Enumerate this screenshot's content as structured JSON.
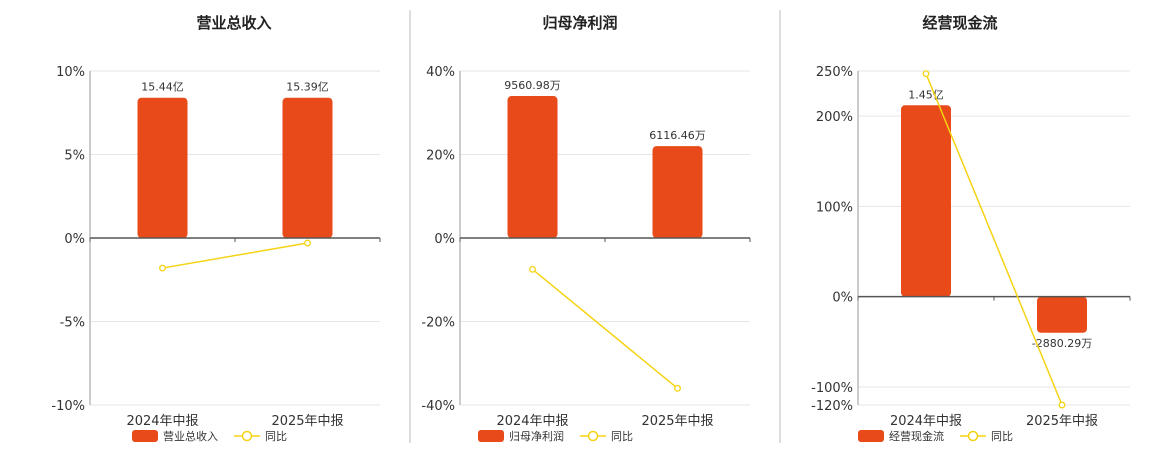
{
  "chart_data": [
    {
      "type": "bar",
      "title": "营业总收入",
      "categories": [
        "2024年中报",
        "2025年中报"
      ],
      "bar_series": {
        "name": "营业总收入",
        "display_values": [
          8.4,
          8.4
        ],
        "labels": [
          "15.44亿",
          "15.39亿"
        ],
        "color": "#e84a1a"
      },
      "line_series": {
        "name": "同比",
        "values": [
          -1.8,
          -0.3
        ],
        "color": "#f5d313"
      },
      "ylim": [
        -10,
        10
      ],
      "yticks": [
        -10,
        -5,
        0,
        5,
        10
      ],
      "ytick_labels": [
        "-10%",
        "-5%",
        "0%",
        "5%",
        "10%"
      ],
      "grid": true,
      "legend_position": "bottom"
    },
    {
      "type": "bar",
      "title": "归母净利润",
      "categories": [
        "2024年中报",
        "2025年中报"
      ],
      "bar_series": {
        "name": "归母净利润",
        "display_values": [
          34,
          22
        ],
        "labels": [
          "9560.98万",
          "6116.46万"
        ],
        "color": "#e84a1a"
      },
      "line_series": {
        "name": "同比",
        "values": [
          -7.5,
          -36
        ],
        "color": "#f5d313"
      },
      "ylim": [
        -40,
        40
      ],
      "yticks": [
        -40,
        -20,
        0,
        20,
        40
      ],
      "ytick_labels": [
        "-40%",
        "-20%",
        "0%",
        "20%",
        "40%"
      ],
      "grid": true,
      "legend_position": "bottom"
    },
    {
      "type": "bar",
      "title": "经营现金流",
      "categories": [
        "2024年中报",
        "2025年中报"
      ],
      "bar_series": {
        "name": "经营现金流",
        "display_values": [
          212,
          -40
        ],
        "labels": [
          "1.45亿",
          "-2880.29万"
        ],
        "color": "#e84a1a"
      },
      "line_series": {
        "name": "同比",
        "values": [
          247,
          -120
        ],
        "color": "#f5d313"
      },
      "ylim": [
        -120,
        250
      ],
      "yticks": [
        -120,
        -100,
        0,
        100,
        200,
        250
      ],
      "ytick_labels": [
        "-120%",
        "-100%",
        "0%",
        "100%",
        "200%",
        "250%"
      ],
      "grid": true,
      "legend_position": "bottom"
    }
  ]
}
